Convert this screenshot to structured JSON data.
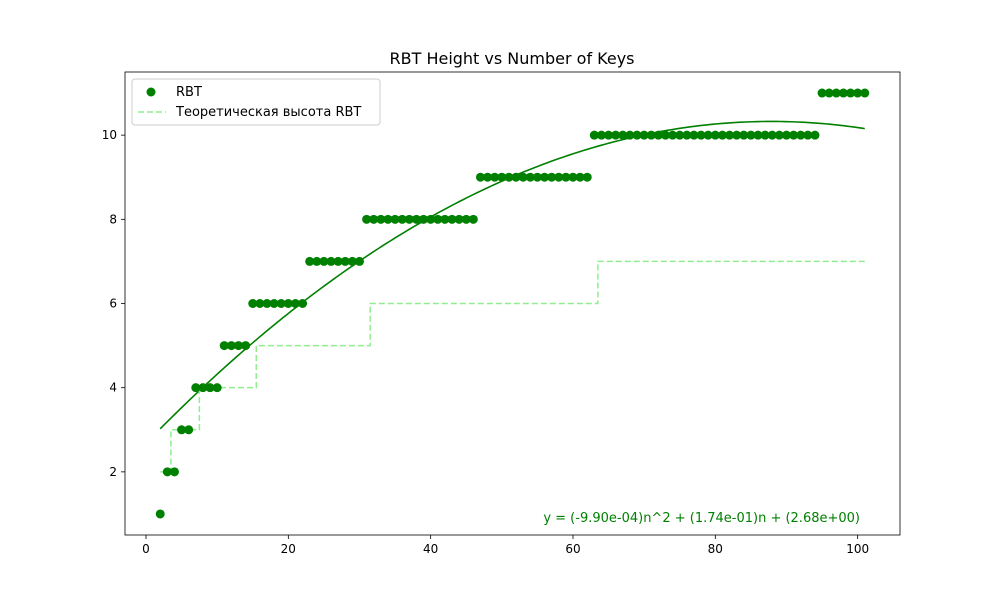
{
  "chart_data": {
    "type": "scatter",
    "title": "RBT Height vs Number of Keys",
    "xlabel": "",
    "ylabel": "",
    "xlim": [
      -2.95,
      105.95
    ],
    "ylim": [
      0.5,
      11.5
    ],
    "xticks": [
      0,
      20,
      40,
      60,
      80,
      100
    ],
    "yticks": [
      2,
      4,
      6,
      8,
      10
    ],
    "legend_position": "upper-left",
    "grid": false,
    "series": [
      {
        "name": "RBT",
        "kind": "scatter",
        "color": "#008000",
        "x": [
          2,
          3,
          4,
          5,
          6,
          7,
          8,
          9,
          10,
          11,
          12,
          13,
          14,
          15,
          16,
          17,
          18,
          19,
          20,
          21,
          22,
          23,
          24,
          25,
          26,
          27,
          28,
          29,
          30,
          31,
          32,
          33,
          34,
          35,
          36,
          37,
          38,
          39,
          40,
          41,
          42,
          43,
          44,
          45,
          46,
          47,
          48,
          49,
          50,
          51,
          52,
          53,
          54,
          55,
          56,
          57,
          58,
          59,
          60,
          61,
          62,
          63,
          64,
          65,
          66,
          67,
          68,
          69,
          70,
          71,
          72,
          73,
          74,
          75,
          76,
          77,
          78,
          79,
          80,
          81,
          82,
          83,
          84,
          85,
          86,
          87,
          88,
          89,
          90,
          91,
          92,
          93,
          94,
          95,
          96,
          97,
          98,
          99,
          100,
          101
        ],
        "y": [
          1,
          2,
          2,
          3,
          3,
          4,
          4,
          4,
          4,
          5,
          5,
          5,
          5,
          6,
          6,
          6,
          6,
          6,
          6,
          6,
          6,
          7,
          7,
          7,
          7,
          7,
          7,
          7,
          7,
          8,
          8,
          8,
          8,
          8,
          8,
          8,
          8,
          8,
          8,
          8,
          8,
          8,
          8,
          8,
          8,
          9,
          9,
          9,
          9,
          9,
          9,
          9,
          9,
          9,
          9,
          9,
          9,
          9,
          9,
          9,
          9,
          10,
          10,
          10,
          10,
          10,
          10,
          10,
          10,
          10,
          10,
          10,
          10,
          10,
          10,
          10,
          10,
          10,
          10,
          10,
          10,
          10,
          10,
          10,
          10,
          10,
          10,
          10,
          10,
          10,
          10,
          10,
          10,
          11,
          11,
          11,
          11,
          11,
          11,
          11
        ]
      },
      {
        "name": "Теоретическая высота RBT",
        "kind": "step-dashed",
        "color": "#90ee90",
        "x": [
          2,
          3,
          4,
          5,
          6,
          7,
          8,
          9,
          10,
          11,
          12,
          13,
          14,
          15,
          16,
          17,
          18,
          19,
          20,
          21,
          22,
          23,
          24,
          25,
          26,
          27,
          28,
          29,
          30,
          31,
          32,
          33,
          34,
          35,
          36,
          37,
          38,
          39,
          40,
          41,
          42,
          43,
          44,
          45,
          46,
          47,
          48,
          49,
          50,
          51,
          52,
          53,
          54,
          55,
          56,
          57,
          58,
          59,
          60,
          61,
          62,
          63,
          64,
          65,
          66,
          67,
          68,
          69,
          70,
          71,
          72,
          73,
          74,
          75,
          76,
          77,
          78,
          79,
          80,
          81,
          82,
          83,
          84,
          85,
          86,
          87,
          88,
          89,
          90,
          91,
          92,
          93,
          94,
          95,
          96,
          97,
          98,
          99,
          100,
          101
        ],
        "y": [
          2,
          2,
          3,
          3,
          3,
          3,
          4,
          4,
          4,
          4,
          4,
          4,
          4,
          4,
          5,
          5,
          5,
          5,
          5,
          5,
          5,
          5,
          5,
          5,
          5,
          5,
          5,
          5,
          5,
          5,
          6,
          6,
          6,
          6,
          6,
          6,
          6,
          6,
          6,
          6,
          6,
          6,
          6,
          6,
          6,
          6,
          6,
          6,
          6,
          6,
          6,
          6,
          6,
          6,
          6,
          6,
          6,
          6,
          6,
          6,
          6,
          6,
          7,
          7,
          7,
          7,
          7,
          7,
          7,
          7,
          7,
          7,
          7,
          7,
          7,
          7,
          7,
          7,
          7,
          7,
          7,
          7,
          7,
          7,
          7,
          7,
          7,
          7,
          7,
          7,
          7,
          7,
          7,
          7,
          7,
          7,
          7,
          7,
          7,
          7
        ]
      }
    ],
    "fit": {
      "type": "quadratic",
      "a": -0.00099,
      "b": 0.174,
      "c": 2.68,
      "x_range": [
        2,
        101
      ],
      "color": "#008000",
      "label": "y = (-9.90e-04)n^2 + (1.74e-01)n + (2.68e+00)"
    }
  }
}
